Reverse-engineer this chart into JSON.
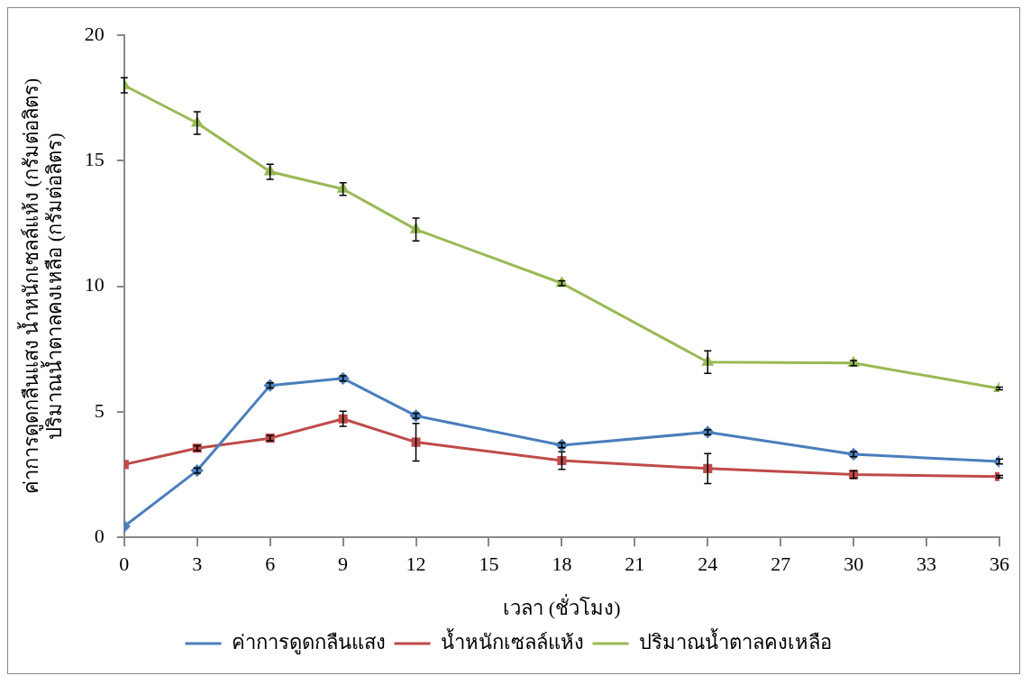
{
  "chart_data": {
    "type": "line",
    "xlabel": "เวลา (ชั่วโมง)",
    "ylabel": "ค่าการดูดกลืนแสง น้ำหนักเซลล์แห้ง (กรัมต่อลิตร)\nปริมาณน้ำตาลคงเหลือ (กรัมต่อลิตร)",
    "x": [
      0,
      3,
      6,
      9,
      12,
      18,
      24,
      30,
      36
    ],
    "xlim": [
      0,
      36
    ],
    "xticks": [
      0,
      3,
      6,
      9,
      12,
      15,
      18,
      21,
      24,
      27,
      30,
      33,
      36
    ],
    "ylim": [
      0,
      20
    ],
    "yticks": [
      0,
      5,
      10,
      15,
      20
    ],
    "grid": false,
    "legend": "bottom",
    "line_style": "solid",
    "series": [
      {
        "name": "ค่าการดูดกลืนแสง",
        "color": "#4a7ebb",
        "marker": "diamond",
        "values": [
          0.44,
          2.66,
          6.05,
          6.33,
          4.84,
          3.67,
          4.19,
          3.31,
          3.02
        ],
        "errors": [
          null,
          0.1,
          0.1,
          0.1,
          0.1,
          0.1,
          0.1,
          0.1,
          0.1
        ]
      },
      {
        "name": "น้ำหนักเซลล์แห้ง",
        "color": "#be4b48",
        "marker": "square",
        "values": [
          2.9,
          3.55,
          3.95,
          4.72,
          3.79,
          3.06,
          2.74,
          2.5,
          2.42
        ],
        "errors": [
          null,
          0.1,
          0.1,
          0.3,
          0.75,
          0.35,
          0.6,
          0.15,
          0.05
        ]
      },
      {
        "name": "ปริมาณน้ำตาลคงเหลือ",
        "color": "#98b954",
        "marker": "triangle",
        "values": [
          18.0,
          16.5,
          14.56,
          13.87,
          12.26,
          10.12,
          6.98,
          6.94,
          5.93
        ],
        "errors": [
          0.3,
          0.45,
          0.3,
          0.25,
          0.45,
          0.1,
          0.45,
          0.1,
          0.05
        ]
      }
    ]
  }
}
